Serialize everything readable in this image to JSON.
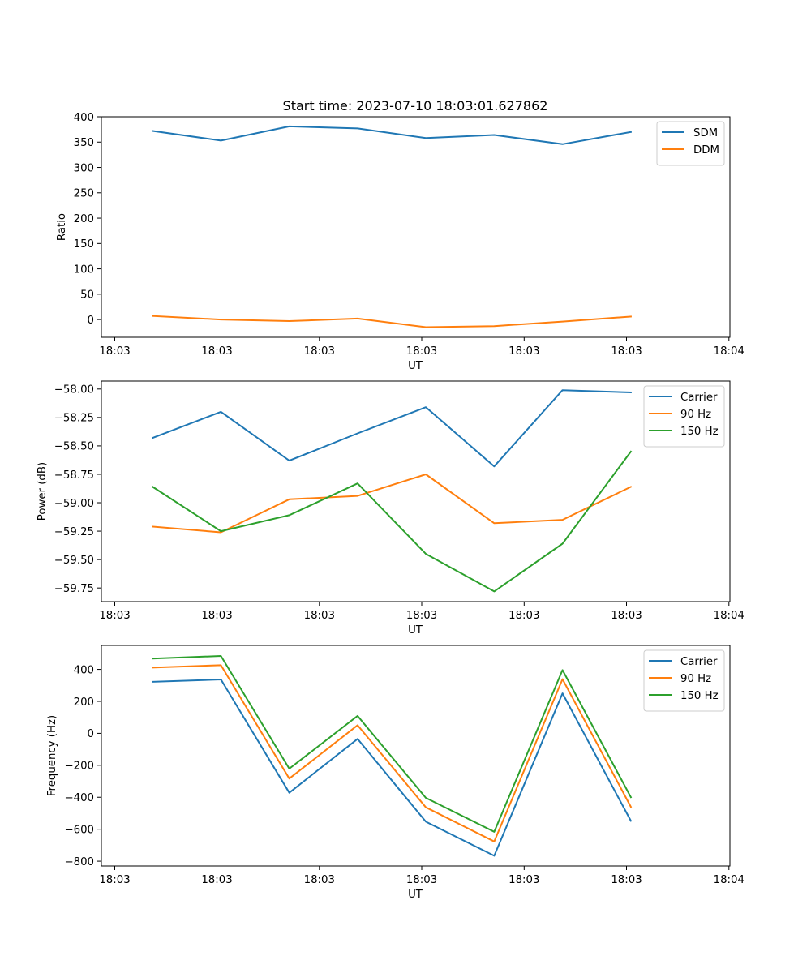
{
  "figure": {
    "title": "Start time: 2023-07-10 18:03:01.627862"
  },
  "colors": {
    "blue": "#1f77b4",
    "orange": "#ff7f0e",
    "green": "#2ca02c"
  },
  "chart_data": [
    {
      "type": "line",
      "title": "Start time: 2023-07-10 18:03:01.627862",
      "xlabel": "UT",
      "ylabel": "Ratio",
      "x_tick_labels": [
        "18:03",
        "18:03",
        "18:03",
        "18:03",
        "18:03",
        "18:03",
        "18:04"
      ],
      "yticks": [
        0,
        50,
        100,
        150,
        200,
        250,
        300,
        350,
        400
      ],
      "ytick_labels": [
        "0",
        "50",
        "100",
        "150",
        "200",
        "250",
        "300",
        "350",
        "400"
      ],
      "ylim": [
        -35,
        400
      ],
      "x": [
        1,
        2,
        3,
        4,
        5,
        6,
        7,
        8
      ],
      "xlim": [
        0.25,
        9.45
      ],
      "series": [
        {
          "name": "SDM",
          "color": "#1f77b4",
          "values": [
            372,
            353,
            381,
            377,
            358,
            364,
            346,
            370
          ]
        },
        {
          "name": "DDM",
          "color": "#ff7f0e",
          "values": [
            7,
            0,
            -3,
            2,
            -15,
            -13,
            -4,
            6
          ]
        }
      ],
      "legend": "upper-right"
    },
    {
      "type": "line",
      "title": "",
      "xlabel": "UT",
      "ylabel": "Power (dB)",
      "x_tick_labels": [
        "18:03",
        "18:03",
        "18:03",
        "18:03",
        "18:03",
        "18:03",
        "18:04"
      ],
      "yticks": [
        -59.75,
        -59.5,
        -59.25,
        -59.0,
        -58.75,
        -58.5,
        -58.25,
        -58.0
      ],
      "ytick_labels": [
        "−59.75",
        "−59.50",
        "−59.25",
        "−59.00",
        "−58.75",
        "−58.50",
        "−58.25",
        "−58.00"
      ],
      "ylim": [
        -59.87,
        -57.93
      ],
      "x": [
        1,
        2,
        3,
        4,
        5,
        6,
        7,
        8
      ],
      "xlim": [
        0.25,
        9.45
      ],
      "series": [
        {
          "name": "Carrier",
          "color": "#1f77b4",
          "values": [
            -58.43,
            -58.2,
            -58.63,
            -58.39,
            -58.16,
            -58.68,
            -58.01,
            -58.03
          ]
        },
        {
          "name": "90 Hz",
          "color": "#ff7f0e",
          "values": [
            -59.21,
            -59.26,
            -58.97,
            -58.94,
            -58.75,
            -59.18,
            -59.15,
            -58.86
          ]
        },
        {
          "name": "150 Hz",
          "color": "#2ca02c",
          "values": [
            -58.86,
            -59.25,
            -59.11,
            -58.83,
            -59.45,
            -59.78,
            -59.36,
            -58.55
          ]
        }
      ],
      "legend": "upper-right"
    },
    {
      "type": "line",
      "title": "",
      "xlabel": "UT",
      "ylabel": "Frequency (Hz)",
      "x_tick_labels": [
        "18:03",
        "18:03",
        "18:03",
        "18:03",
        "18:03",
        "18:03",
        "18:04"
      ],
      "yticks": [
        -800,
        -600,
        -400,
        -200,
        0,
        200,
        400
      ],
      "ytick_labels": [
        "−800",
        "−600",
        "−400",
        "−200",
        "0",
        "200",
        "400"
      ],
      "ylim": [
        -830,
        550
      ],
      "x": [
        1,
        2,
        3,
        4,
        5,
        6,
        7,
        8
      ],
      "xlim": [
        0.25,
        9.45
      ],
      "series": [
        {
          "name": "Carrier",
          "color": "#1f77b4",
          "values": [
            322,
            337,
            -372,
            -35,
            -553,
            -766,
            250,
            -548
          ]
        },
        {
          "name": "90 Hz",
          "color": "#ff7f0e",
          "values": [
            411,
            426,
            -283,
            51,
            -463,
            -677,
            339,
            -460
          ]
        },
        {
          "name": "150 Hz",
          "color": "#2ca02c",
          "values": [
            468,
            484,
            -221,
            109,
            -404,
            -616,
            396,
            -400
          ]
        }
      ],
      "legend": "upper-right"
    }
  ]
}
